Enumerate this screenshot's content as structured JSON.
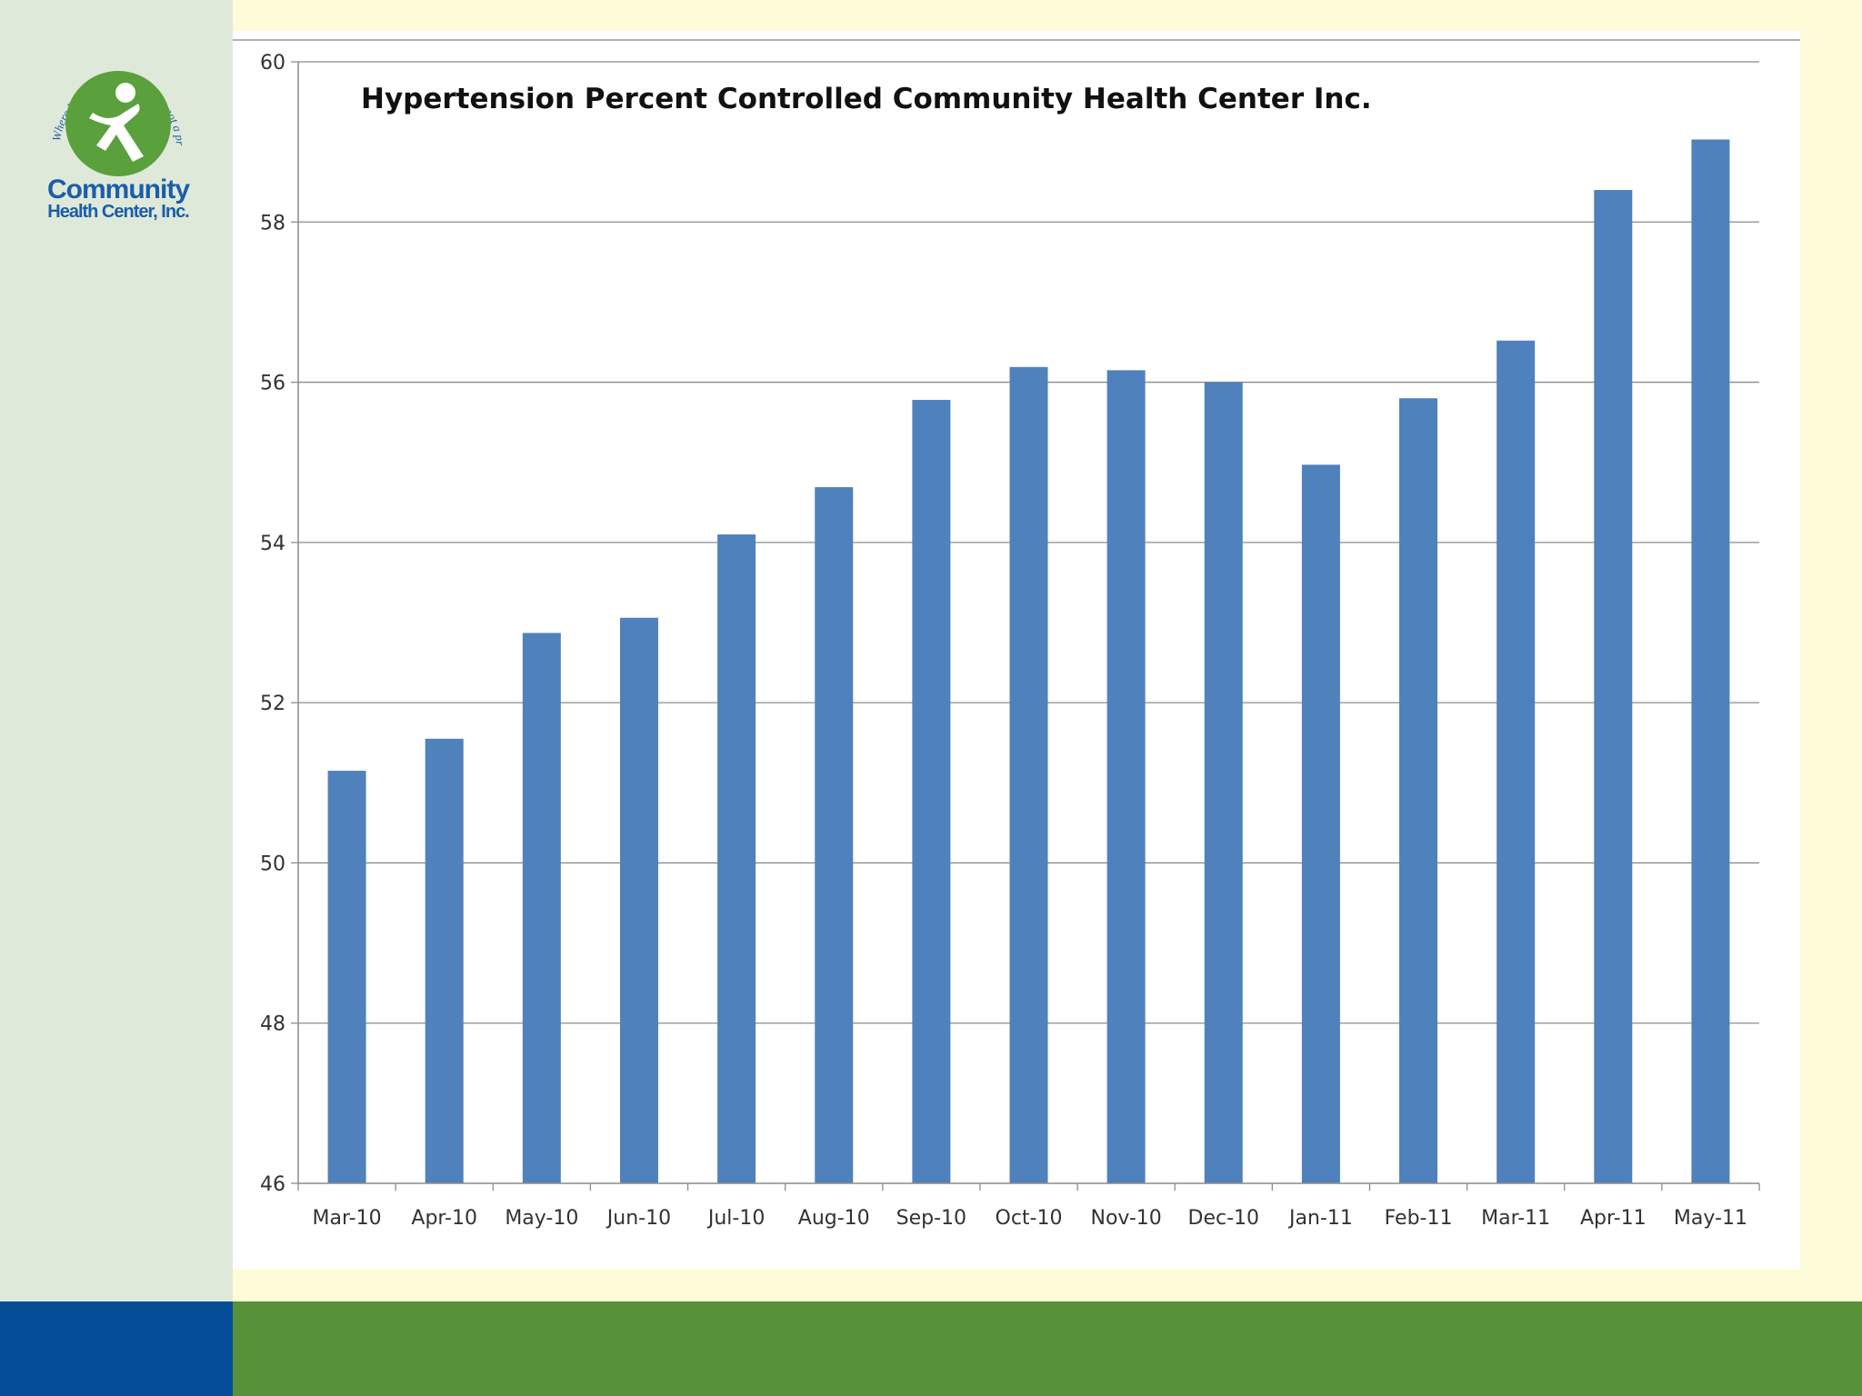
{
  "brand": {
    "name_line1": "Community",
    "name_line2": "Health Center, Inc.",
    "tagline": "Where health care is a right, not a privilege, since 1972",
    "colors": {
      "logo_green": "#5aa03c",
      "logo_blue": "#1b5ea8",
      "footer_blue": "#044c96",
      "footer_green": "#55923a",
      "background": "#fefbd8",
      "side_panel": "#dfe9da"
    }
  },
  "chart_data": {
    "type": "bar",
    "title": "Hypertension Percent Controlled Community Health Center Inc.",
    "xlabel": "",
    "ylabel": "",
    "categories": [
      "Mar-10",
      "Apr-10",
      "May-10",
      "Jun-10",
      "Jul-10",
      "Aug-10",
      "Sep-10",
      "Oct-10",
      "Nov-10",
      "Dec-10",
      "Jan-11",
      "Feb-11",
      "Mar-11",
      "Apr-11",
      "May-11"
    ],
    "values": [
      51.15,
      51.55,
      52.87,
      53.06,
      54.1,
      54.69,
      55.78,
      56.19,
      56.15,
      56.0,
      54.97,
      55.8,
      56.52,
      58.4,
      59.03
    ],
    "ylim": [
      46,
      60
    ],
    "yticks": [
      46,
      48,
      50,
      52,
      54,
      56,
      58,
      60
    ],
    "grid": true,
    "legend": "none",
    "bar_color": "#4f81bd"
  }
}
